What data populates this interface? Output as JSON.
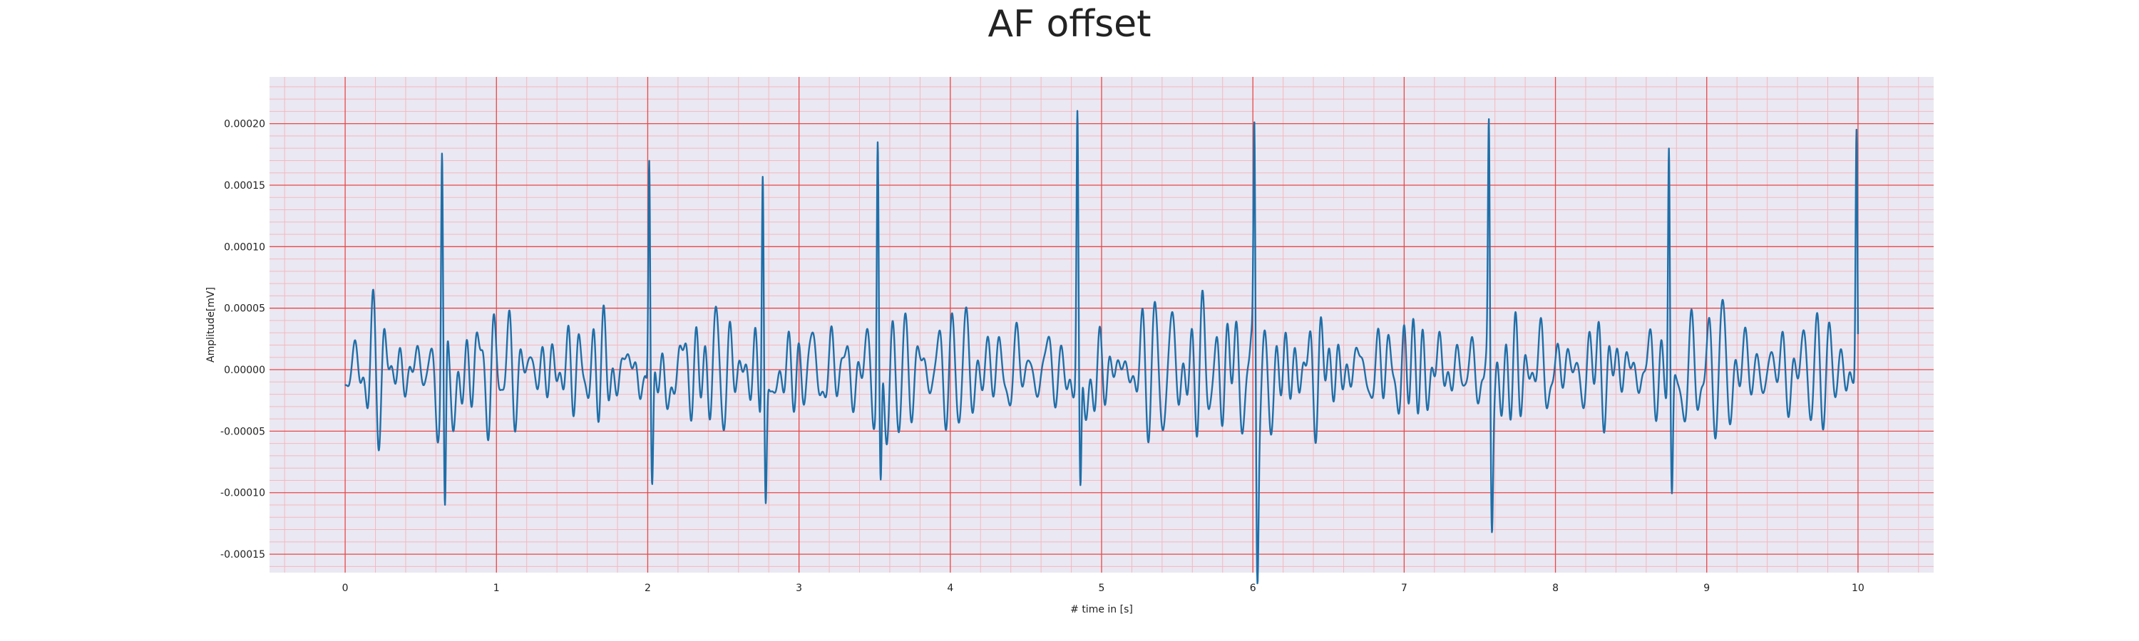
{
  "chart_data": {
    "type": "line",
    "title": "AF offset",
    "xlabel": "# time in [s]",
    "ylabel": "Amplitude[mV]",
    "xlim": [
      -0.5,
      10.5
    ],
    "ylim": [
      -0.000165,
      0.000238
    ],
    "x_ticks": [
      0,
      1,
      2,
      3,
      4,
      5,
      6,
      7,
      8,
      9,
      10
    ],
    "x_tick_labels": [
      "0",
      "1",
      "2",
      "3",
      "4",
      "5",
      "6",
      "7",
      "8",
      "9",
      "10"
    ],
    "y_ticks": [
      0.0002,
      0.00015,
      0.0001,
      5e-05,
      0,
      -5e-05,
      -0.0001,
      -0.00015
    ],
    "y_tick_labels": [
      "0.00020",
      "0.00015",
      "0.00010",
      "0.00005",
      "0.00000",
      "-0.00005",
      "-0.00010",
      "-0.00015"
    ],
    "grid": "ecg",
    "background_color": "#eae8f2",
    "major_grid_color": "#e84848",
    "minor_grid_color": "#f4b7bf",
    "series": [
      {
        "color": "#1f6fa8",
        "peaks": [
          {
            "t": 0.64,
            "r": 0.000196,
            "s": -0.000147
          },
          {
            "t": 2.01,
            "r": 0.00021,
            "s": -9.7e-05
          },
          {
            "t": 2.76,
            "r": 0.000194,
            "s": -0.000115
          },
          {
            "t": 3.52,
            "r": 0.00021,
            "s": -0.000119
          },
          {
            "t": 4.84,
            "r": 0.000221,
            "s": -0.000123
          },
          {
            "t": 6.01,
            "r": 0.000209,
            "s": -0.000126
          },
          {
            "t": 7.56,
            "r": 0.000213,
            "s": -0.000102
          },
          {
            "t": 8.75,
            "r": 0.000213,
            "s": -0.000106
          },
          {
            "t": 9.99,
            "r": 0.000222,
            "s": -3.3e-05
          }
        ],
        "start": {
          "t": 0,
          "value": -1.3e-05
        }
      }
    ]
  }
}
